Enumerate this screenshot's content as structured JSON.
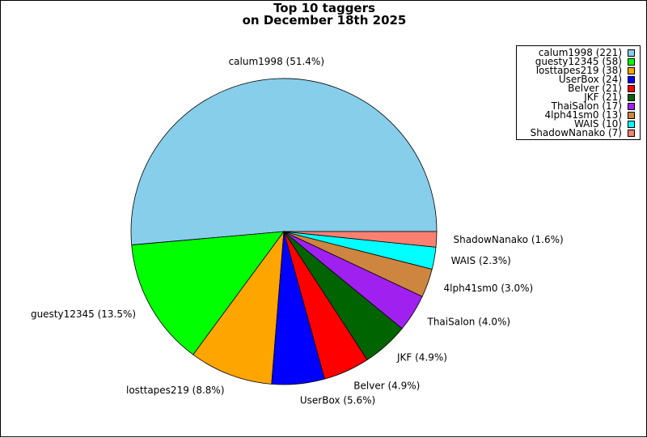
{
  "chart_data": {
    "type": "pie",
    "title_line1": "Top 10 taggers",
    "title_line2": "on December 18th 2025",
    "slices": [
      {
        "name": "calum1998",
        "count": 221,
        "percent": 51.4,
        "pie_label": "calum1998 (51.4%)",
        "legend_label": "calum1998 (221)",
        "color": "#87ceeb"
      },
      {
        "name": "guesty12345",
        "count": 58,
        "percent": 13.5,
        "pie_label": "guesty12345 (13.5%)",
        "legend_label": "guesty12345 (58)",
        "color": "#00ff00"
      },
      {
        "name": "losttapes219",
        "count": 38,
        "percent": 8.8,
        "pie_label": "losttapes219 (8.8%)",
        "legend_label": "losttapes219 (38)",
        "color": "#ffa500"
      },
      {
        "name": "UserBox",
        "count": 24,
        "percent": 5.6,
        "pie_label": "UserBox (5.6%)",
        "legend_label": "UserBox (24)",
        "color": "#0000ff"
      },
      {
        "name": "Belver",
        "count": 21,
        "percent": 4.9,
        "pie_label": "Belver (4.9%)",
        "legend_label": "Belver (21)",
        "color": "#ff0000"
      },
      {
        "name": "JKF",
        "count": 21,
        "percent": 4.9,
        "pie_label": "JKF (4.9%)",
        "legend_label": "JKF (21)",
        "color": "#006400"
      },
      {
        "name": "ThaiSalon",
        "count": 17,
        "percent": 4.0,
        "pie_label": "ThaiSalon (4.0%)",
        "legend_label": "ThaiSalon (17)",
        "color": "#a020f0"
      },
      {
        "name": "4lph41sm0",
        "count": 13,
        "percent": 3.0,
        "pie_label": "4lph41sm0 (3.0%)",
        "legend_label": "4lph41sm0 (13)",
        "color": "#cd853f"
      },
      {
        "name": "WAIS",
        "count": 10,
        "percent": 2.3,
        "pie_label": "WAIS (2.3%)",
        "legend_label": "WAIS (10)",
        "color": "#00ffff"
      },
      {
        "name": "ShadowNanako",
        "count": 7,
        "percent": 1.6,
        "pie_label": "ShadowNanako (1.6%)",
        "legend_label": "ShadowNanako (7)",
        "color": "#fa8072"
      }
    ],
    "legend_position": "top-right",
    "start_direction": "east",
    "direction": "counterclockwise"
  }
}
